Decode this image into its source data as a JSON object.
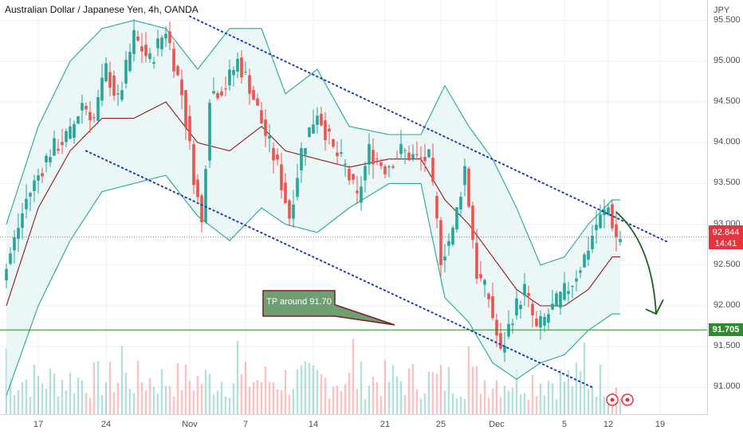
{
  "header": {
    "title": "Australian Dollar / Japanese Yen, 4h, OANDA"
  },
  "axis": {
    "unit": "JPY",
    "y_ticks": [
      "95.500",
      "95.000",
      "94.500",
      "94.000",
      "93.500",
      "93.000",
      "92.500",
      "92.000",
      "91.500",
      "91.000"
    ],
    "x_ticks": [
      "17",
      "24",
      "Nov",
      "7",
      "14",
      "21",
      "25",
      "Dec",
      "5",
      "12",
      "19"
    ]
  },
  "price_labels": {
    "current_price": "92.844",
    "countdown": "14:41",
    "tp_price": "91.705"
  },
  "annotation": {
    "callout": "TP around 91.70"
  },
  "colors": {
    "up": "#26a69a",
    "down": "#ef5350",
    "band": "#26a69a",
    "band_fill": "#e3f4f2",
    "basis": "#8b1a1a",
    "channel": "#1f3fb0",
    "tp_line": "#2e8b2e",
    "arrow": "#1b5e20",
    "callout_fill": "#6f9f73",
    "callout_border": "#7a1f1f"
  },
  "chart_data": {
    "type": "candlestick",
    "symbol": "Australian Dollar / Japanese Yen",
    "timeframe": "4h",
    "ylim": [
      90.75,
      95.75
    ],
    "grid": true,
    "dates": [
      "17",
      "24",
      "Nov",
      "7",
      "14",
      "21",
      "25",
      "Dec",
      "5",
      "12",
      "19"
    ],
    "price_path": [
      [
        0,
        92.3
      ],
      [
        6,
        93.3
      ],
      [
        12,
        93.9
      ],
      [
        17,
        94.1
      ],
      [
        20,
        94.5
      ],
      [
        23,
        94.3
      ],
      [
        26,
        94.9
      ],
      [
        29,
        94.5
      ],
      [
        33,
        95.3
      ],
      [
        37,
        95.0
      ],
      [
        41,
        95.4
      ],
      [
        45,
        94.6
      ],
      [
        48,
        93.6
      ],
      [
        50,
        93.0
      ],
      [
        52,
        94.6
      ],
      [
        56,
        94.7
      ],
      [
        59,
        95.0
      ],
      [
        62,
        94.7
      ],
      [
        66,
        94.1
      ],
      [
        69,
        93.7
      ],
      [
        72,
        93.1
      ],
      [
        75,
        93.9
      ],
      [
        79,
        94.4
      ],
      [
        83,
        93.9
      ],
      [
        86,
        93.7
      ],
      [
        89,
        93.3
      ],
      [
        92,
        93.9
      ],
      [
        96,
        93.7
      ],
      [
        100,
        93.9
      ],
      [
        104,
        93.8
      ],
      [
        107,
        93.8
      ],
      [
        110,
        92.6
      ],
      [
        113,
        92.9
      ],
      [
        116,
        93.7
      ],
      [
        119,
        92.4
      ],
      [
        122,
        92.1
      ],
      [
        125,
        91.4
      ],
      [
        128,
        91.9
      ],
      [
        131,
        92.2
      ],
      [
        134,
        91.7
      ],
      [
        137,
        91.9
      ],
      [
        140,
        92.1
      ],
      [
        143,
        92.3
      ],
      [
        146,
        92.6
      ],
      [
        149,
        93.0
      ],
      [
        152,
        93.2
      ],
      [
        154,
        92.84
      ]
    ],
    "bollinger_upper": [
      [
        0,
        93.0
      ],
      [
        8,
        94.2
      ],
      [
        16,
        95.0
      ],
      [
        24,
        95.4
      ],
      [
        32,
        95.5
      ],
      [
        40,
        95.4
      ],
      [
        48,
        94.9
      ],
      [
        56,
        95.4
      ],
      [
        64,
        95.4
      ],
      [
        70,
        94.6
      ],
      [
        78,
        94.9
      ],
      [
        86,
        94.2
      ],
      [
        96,
        94.1
      ],
      [
        104,
        94.1
      ],
      [
        110,
        94.7
      ],
      [
        116,
        94.2
      ],
      [
        122,
        93.8
      ],
      [
        128,
        93.2
      ],
      [
        134,
        92.5
      ],
      [
        140,
        92.6
      ],
      [
        146,
        93.0
      ],
      [
        152,
        93.3
      ]
    ],
    "bollinger_basis": [
      [
        0,
        92.0
      ],
      [
        8,
        93.2
      ],
      [
        16,
        93.9
      ],
      [
        24,
        94.3
      ],
      [
        32,
        94.3
      ],
      [
        40,
        94.5
      ],
      [
        48,
        94.0
      ],
      [
        56,
        93.9
      ],
      [
        64,
        94.2
      ],
      [
        70,
        93.9
      ],
      [
        78,
        93.8
      ],
      [
        86,
        93.7
      ],
      [
        96,
        93.8
      ],
      [
        104,
        93.8
      ],
      [
        110,
        93.3
      ],
      [
        116,
        93.0
      ],
      [
        122,
        92.6
      ],
      [
        128,
        92.2
      ],
      [
        134,
        92.0
      ],
      [
        140,
        92.0
      ],
      [
        146,
        92.2
      ],
      [
        152,
        92.6
      ]
    ],
    "bollinger_lower": [
      [
        0,
        90.9
      ],
      [
        8,
        92.0
      ],
      [
        16,
        92.8
      ],
      [
        24,
        93.4
      ],
      [
        32,
        93.5
      ],
      [
        40,
        93.6
      ],
      [
        48,
        93.1
      ],
      [
        56,
        92.8
      ],
      [
        64,
        93.2
      ],
      [
        70,
        93.0
      ],
      [
        78,
        92.9
      ],
      [
        86,
        93.2
      ],
      [
        96,
        93.5
      ],
      [
        104,
        93.5
      ],
      [
        110,
        92.1
      ],
      [
        116,
        91.8
      ],
      [
        122,
        91.3
      ],
      [
        128,
        91.1
      ],
      [
        134,
        91.3
      ],
      [
        140,
        91.4
      ],
      [
        146,
        91.7
      ],
      [
        152,
        91.9
      ]
    ],
    "channel_lines": [
      {
        "from": [
          46,
          95.55
        ],
        "to": [
          166,
          92.78
        ]
      },
      {
        "from": [
          20,
          93.9
        ],
        "to": [
          147,
          91.0
        ]
      }
    ],
    "horizontal_lines": [
      {
        "price": 91.705,
        "label": "TP around 91.70"
      },
      {
        "price": 92.844,
        "style": "dotted-current"
      }
    ],
    "projection_arrow": {
      "from": [
        153,
        93.15
      ],
      "to": [
        162,
        91.9
      ]
    },
    "annotations": [
      "TP around 91.70"
    ]
  }
}
